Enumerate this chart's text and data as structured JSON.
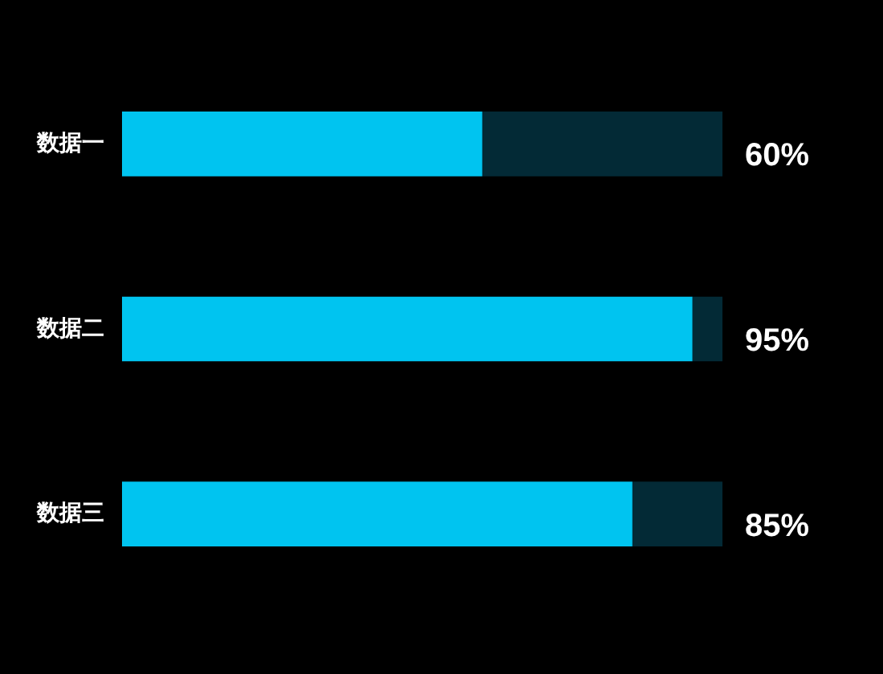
{
  "chart_data": {
    "type": "bar",
    "orientation": "horizontal",
    "stacked": true,
    "categories": [
      "数据一",
      "数据二",
      "数据三"
    ],
    "series": [
      {
        "color": "#00c4f0",
        "values": [
          60,
          95,
          85
        ],
        "value_labels": [
          "60%",
          "95%",
          "85%"
        ]
      },
      {
        "color": "#032a36",
        "values": [
          40,
          5,
          15
        ]
      }
    ],
    "xlim": [
      0,
      100
    ],
    "tick_labels": "y",
    "legend": false
  }
}
